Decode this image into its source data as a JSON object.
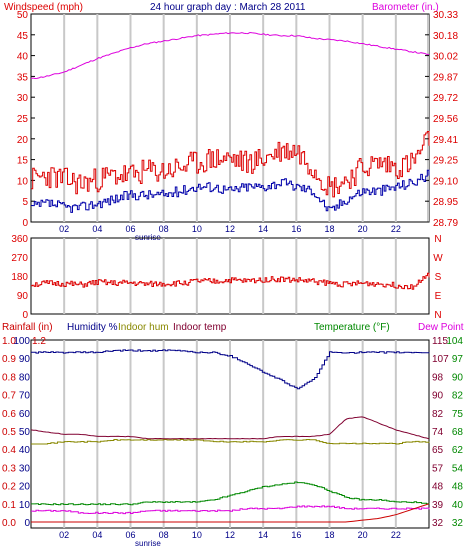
{
  "title": "24 hour graph day : March 28 2011",
  "panel1": {
    "left_label": "Windspeed (mph)",
    "right_label": "Barometer (in.)",
    "left_ticks": [
      "0",
      "5",
      "10",
      "15",
      "20",
      "25",
      "30",
      "35",
      "40",
      "45",
      "50"
    ],
    "right_ticks": [
      "28.79",
      "28.95",
      "29.10",
      "29.25",
      "29.41",
      "29.56",
      "29.72",
      "29.87",
      "30.02",
      "30.18",
      "30.33"
    ],
    "x_ticks": [
      "02",
      "04",
      "06",
      "08",
      "10",
      "12",
      "14",
      "16",
      "18",
      "20",
      "22"
    ],
    "sunrise_label": "sunrise"
  },
  "panel2": {
    "left_ticks": [
      "0",
      "90",
      "180",
      "270",
      "360"
    ],
    "right_ticks": [
      "N",
      "E",
      "S",
      "W",
      "N"
    ]
  },
  "panel3": {
    "header_rainfall": "Rainfall (in)",
    "header_humidity": "Humidity %",
    "header_indoor_hum": "Indoor hum",
    "header_indoor_temp": "Indoor temp",
    "header_temperature": "Temperature (°F)",
    "header_dewpoint": "Dew Point",
    "rain_ticks": [
      "0.0",
      "0.1",
      "0.2",
      "0.3",
      "0.4",
      "0.5",
      "0.6",
      "0.7",
      "0.8",
      "0.9",
      "1.0"
    ],
    "hum_ticks": [
      "0",
      "10",
      "20",
      "30",
      "40",
      "50",
      "60",
      "70",
      "80",
      "90",
      "100"
    ],
    "rain_top_tick": "1.2",
    "right_ticks_a": [
      "32",
      "39",
      "48",
      "57",
      "65",
      "74",
      "82",
      "90",
      "98",
      "107",
      "115"
    ],
    "right_ticks_b": [
      "32",
      "40",
      "48",
      "54",
      "62",
      "68",
      "75",
      "82",
      "90",
      "97",
      "104"
    ],
    "x_ticks": [
      "02",
      "04",
      "06",
      "08",
      "10",
      "12",
      "14",
      "16",
      "18",
      "20",
      "22"
    ],
    "sunrise_label": "sunrise"
  },
  "colors": {
    "wind": "#dd0000",
    "gust": "#dd0000",
    "avg_wind": "#0000aa",
    "barometer": "#dd00dd",
    "direction": "#dd0000",
    "humidity": "#000088",
    "indoor_hum": "#888800",
    "indoor_temp": "#800030",
    "temperature": "#008800",
    "dewpoint": "#dd00dd",
    "rainfall": "#cc0000",
    "grid": "#c8c8c8",
    "frame": "#000000"
  },
  "chart_data": [
    {
      "type": "line",
      "title": "24 hour graph day : March 28 2011",
      "xlabel": "",
      "ylabel": "Windspeed (mph)",
      "ylabel_right": "Barometer (in.)",
      "x": [
        0,
        1,
        2,
        3,
        4,
        5,
        6,
        7,
        8,
        9,
        10,
        11,
        12,
        13,
        14,
        15,
        16,
        17,
        18,
        19,
        20,
        21,
        22,
        23,
        24
      ],
      "ylim": [
        0,
        50
      ],
      "ylim_right": [
        28.79,
        30.33
      ],
      "series": [
        {
          "axis": "left",
          "values": [
            9,
            10,
            9,
            8,
            9,
            10,
            10,
            11,
            11,
            12,
            13,
            14,
            14,
            13,
            14,
            16,
            16,
            12,
            7,
            9,
            12,
            13,
            12,
            13,
            19
          ]
        },
        {
          "axis": "left",
          "values": [
            3,
            4,
            3,
            3,
            4,
            5,
            6,
            6,
            6,
            7,
            8,
            8,
            7,
            8,
            8,
            9,
            8,
            7,
            2,
            5,
            7,
            7,
            8,
            9,
            11
          ]
        },
        {
          "axis": "right",
          "values": [
            29.85,
            29.87,
            29.9,
            29.95,
            30.0,
            30.04,
            30.08,
            30.11,
            30.13,
            30.15,
            30.17,
            30.18,
            30.19,
            30.19,
            30.18,
            30.17,
            30.17,
            30.15,
            30.14,
            30.13,
            30.11,
            30.09,
            30.07,
            30.05,
            30.03
          ]
        }
      ]
    },
    {
      "type": "line",
      "ylabel": "",
      "x": [
        0,
        1,
        2,
        3,
        4,
        5,
        6,
        7,
        8,
        9,
        10,
        11,
        12,
        13,
        14,
        15,
        16,
        17,
        18,
        19,
        20,
        21,
        22,
        23,
        24
      ],
      "ylim": [
        0,
        360
      ],
      "series": [
        {
          "axis": "left",
          "values": [
            135,
            140,
            138,
            132,
            145,
            140,
            142,
            135,
            138,
            140,
            150,
            148,
            155,
            150,
            158,
            160,
            155,
            150,
            140,
            135,
            140,
            138,
            130,
            125,
            180
          ]
        }
      ]
    },
    {
      "type": "line",
      "ylabel": "",
      "x": [
        0,
        1,
        2,
        3,
        4,
        5,
        6,
        7,
        8,
        9,
        10,
        11,
        12,
        13,
        14,
        15,
        16,
        17,
        18,
        19,
        20,
        21,
        22,
        23,
        24
      ],
      "ylim_left_outer": [
        0.0,
        1.0
      ],
      "ylim_left_inner": [
        0,
        100
      ],
      "ylim_right_outer": [
        32,
        115
      ],
      "ylim_right_inner": [
        32,
        104
      ],
      "series": [
        {
          "axis": "left_inner",
          "values": [
            93,
            93,
            93,
            93,
            93,
            94,
            94,
            94,
            94,
            94,
            93,
            93,
            91,
            87,
            82,
            78,
            73,
            78,
            93,
            93,
            93,
            93,
            93,
            93,
            93
          ]
        },
        {
          "axis": "left_inner",
          "values": [
            43,
            43,
            44,
            44,
            44,
            45,
            45,
            45,
            45,
            45,
            45,
            44,
            44,
            44,
            44,
            45,
            45,
            45,
            43,
            43,
            43,
            43,
            43,
            44,
            44
          ]
        },
        {
          "axis": "right_outer",
          "values": [
            74,
            73,
            72,
            72,
            71,
            71,
            71,
            70,
            70,
            70,
            70,
            70,
            70,
            70,
            70,
            71,
            71,
            71,
            72,
            79,
            80,
            77,
            74,
            72,
            70
          ]
        },
        {
          "axis": "right_outer",
          "values": [
            40,
            40,
            40,
            40,
            40,
            40,
            40,
            41,
            41,
            41,
            41,
            42,
            44,
            46,
            48,
            49,
            50,
            49,
            46,
            43,
            42,
            42,
            41,
            41,
            40
          ]
        },
        {
          "axis": "right_outer",
          "values": [
            37,
            37,
            37,
            36,
            36,
            36,
            36,
            37,
            37,
            37,
            37,
            37,
            37,
            38,
            38,
            38,
            39,
            39,
            39,
            38,
            38,
            38,
            38,
            38,
            38
          ]
        },
        {
          "axis": "left_outer",
          "values": [
            0,
            0,
            0,
            0,
            0,
            0,
            0,
            0,
            0,
            0,
            0,
            0,
            0,
            0,
            0,
            0,
            0,
            0,
            0,
            0,
            0.01,
            0.02,
            0.04,
            0.07,
            0.1
          ]
        }
      ]
    }
  ]
}
